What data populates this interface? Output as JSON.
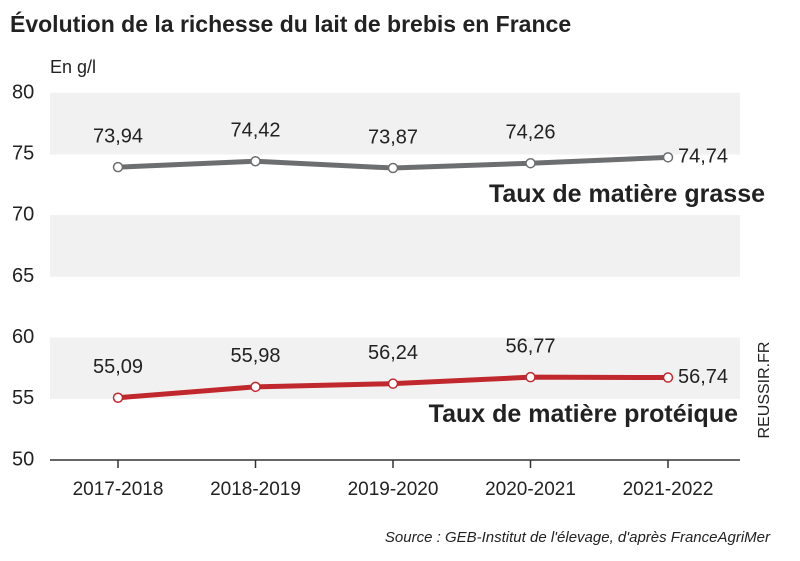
{
  "chart_data": {
    "type": "line",
    "title": "Évolution de la richesse du lait de brebis en France",
    "y_label": "En g/l",
    "categories": [
      "2017-2018",
      "2018-2019",
      "2019-2020",
      "2020-2021",
      "2021-2022"
    ],
    "series": [
      {
        "name": "Taux de matière grasse",
        "color": "#6d6e70",
        "values": [
          73.94,
          74.42,
          73.87,
          74.26,
          74.74
        ],
        "value_labels": [
          "73,94",
          "74,42",
          "73,87",
          "74,26",
          "74,74"
        ]
      },
      {
        "name": "Taux de matière protéique",
        "color": "#c0282d",
        "values": [
          55.09,
          55.98,
          56.24,
          56.77,
          56.74
        ],
        "value_labels": [
          "55,09",
          "55,98",
          "56,24",
          "56,77",
          "56,74"
        ]
      }
    ],
    "ylim": [
      50,
      80
    ],
    "yticks": [
      50,
      55,
      60,
      65,
      70,
      75,
      80
    ],
    "grid": true,
    "source": "Source : GEB-Institut de l'élevage, d'après FranceAgriMer",
    "watermark": "REUSSIR.FR"
  }
}
